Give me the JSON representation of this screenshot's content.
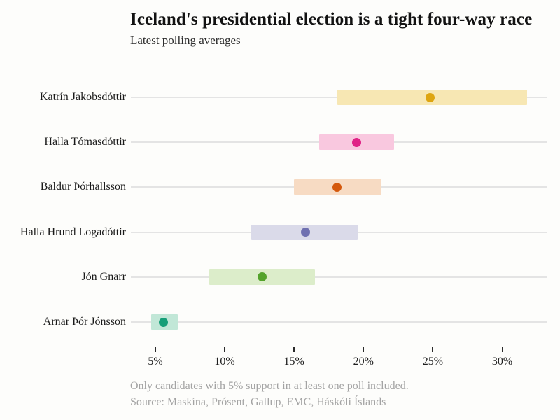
{
  "header": {
    "title": "Iceland's presidential election is a tight four-way race",
    "subtitle": "Latest polling averages"
  },
  "chart_data": {
    "type": "scatter",
    "subtype": "dot-with-range-band",
    "unit": "%",
    "categories": [
      "Katrín Jakobsdóttir",
      "Halla Tómasdóttir",
      "Baldur Þórhallsson",
      "Halla Hrund Logadóttir",
      "Jón Gnarr",
      "Arnar Þór Jónsson"
    ],
    "series": [
      {
        "name": "Katrín Jakobsdóttir",
        "average": 24.8,
        "low": 18.1,
        "high": 31.8,
        "dot_color": "#dea511",
        "band_color": "#f7e7b3"
      },
      {
        "name": "Halla Tómasdóttir",
        "average": 19.5,
        "low": 16.8,
        "high": 22.2,
        "dot_color": "#e02286",
        "band_color": "#f9c8df"
      },
      {
        "name": "Baldur Þórhallsson",
        "average": 18.1,
        "low": 15.0,
        "high": 21.3,
        "dot_color": "#d4590d",
        "band_color": "#f7dbc3"
      },
      {
        "name": "Halla Hrund Logadóttir",
        "average": 15.8,
        "low": 11.9,
        "high": 19.6,
        "dot_color": "#6f70b0",
        "band_color": "#dadae9"
      },
      {
        "name": "Jón Gnarr",
        "average": 12.7,
        "low": 8.9,
        "high": 16.5,
        "dot_color": "#54a32b",
        "band_color": "#dcedca"
      },
      {
        "name": "Arnar Þór Jónsson",
        "average": 5.6,
        "low": 4.7,
        "high": 6.6,
        "dot_color": "#159e77",
        "band_color": "#c1e7d7"
      }
    ],
    "x_ticks": [
      5,
      10,
      15,
      20,
      25,
      30
    ],
    "x_tick_labels": [
      "5%",
      "10%",
      "15%",
      "20%",
      "25%",
      "30%"
    ],
    "xlim": [
      3.2,
      33.3
    ],
    "xlabel": "",
    "ylabel": "",
    "grid": "horizontal-row-lines",
    "legend": "none",
    "colors": {
      "background": "#fdfdfb",
      "row_line": "#e4e4e4",
      "tick": "#2b2b2b",
      "title_text": "#121212",
      "muted_text": "#a3a3a3"
    }
  },
  "footer": {
    "note": "Only candidates with 5% support in at least one poll included.",
    "source": "Source: Maskína, Prósent, Gallup, EMC, Háskóli Íslands"
  }
}
